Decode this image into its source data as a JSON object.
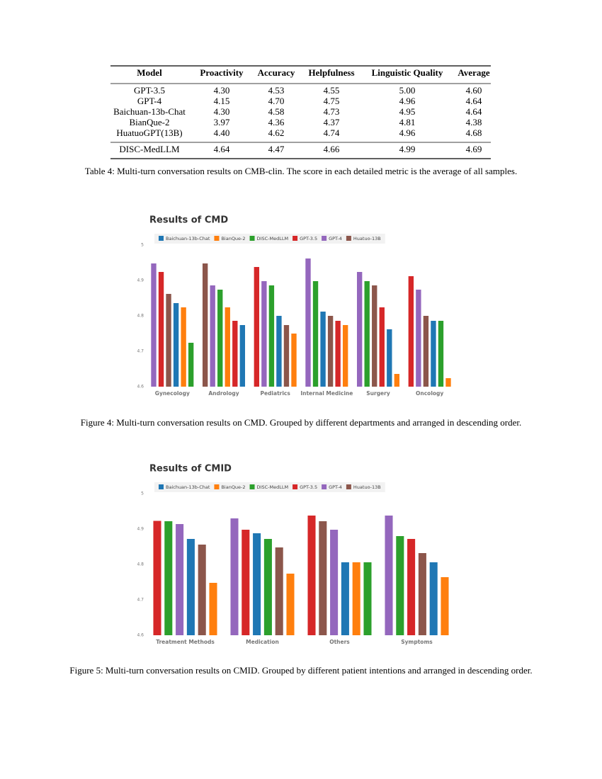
{
  "table": {
    "header": [
      "Model",
      "Proactivity",
      "Accuracy",
      "Helpfulness",
      "Linguistic Quality",
      "Average"
    ],
    "rows": [
      [
        "GPT-3.5",
        "4.30",
        "4.53",
        "4.55",
        "5.00",
        "4.60"
      ],
      [
        "GPT-4",
        "4.15",
        "4.70",
        "4.75",
        "4.96",
        "4.64"
      ],
      [
        "Baichuan-13b-Chat",
        "4.30",
        "4.58",
        "4.73",
        "4.95",
        "4.64"
      ],
      [
        "BianQue-2",
        "3.97",
        "4.36",
        "4.37",
        "4.81",
        "4.38"
      ],
      [
        "HuatuoGPT(13B)",
        "4.40",
        "4.62",
        "4.74",
        "4.96",
        "4.68"
      ]
    ],
    "final_rows": [
      [
        "DISC-MedLLM",
        "4.64",
        "4.47",
        "4.66",
        "4.99",
        "4.69"
      ]
    ]
  },
  "table_caption": "Table 4: Multi-turn conversation results on CMB-clin. The score in each detailed metric is the average of all samples.",
  "figure_captions": [
    "Figure 4: Multi-turn conversation results on CMD. Grouped by different departments and arranged in descending order.",
    "Figure 5: Multi-turn conversation results on CMID. Grouped by different patient intentions and arranged in descending order."
  ],
  "chart_data": [
    {
      "type": "bar",
      "title": "Results of CMD",
      "categories": [
        "Gynecology",
        "Andrology",
        "Pediatrics",
        "Internal Medicine",
        "Surgery",
        "Oncology"
      ],
      "series": [
        {
          "name": "Baichuan-13b-Chat",
          "color": "#1f77b4",
          "values": [
            4.836,
            4.774,
            4.8,
            4.812,
            4.762,
            4.786
          ]
        },
        {
          "name": "BianQue-2",
          "color": "#ff7f0e",
          "values": [
            4.824,
            4.824,
            4.75,
            4.774,
            4.636,
            4.624
          ]
        },
        {
          "name": "DISC-MedLLM",
          "color": "#2ca02c",
          "values": [
            4.724,
            4.874,
            4.886,
            4.898,
            4.898,
            4.786
          ]
        },
        {
          "name": "GPT-3.5",
          "color": "#d62728",
          "values": [
            4.924,
            4.786,
            4.938,
            4.786,
            4.824,
            4.912
          ]
        },
        {
          "name": "GPT-4",
          "color": "#9467bd",
          "values": [
            4.948,
            4.886,
            4.898,
            4.962,
            4.924,
            4.874
          ]
        },
        {
          "name": "Huatuo-13B",
          "color": "#8c564b",
          "values": [
            4.862,
            4.948,
            4.774,
            4.8,
            4.886,
            4.8
          ]
        }
      ],
      "ylim": [
        4.6,
        5
      ],
      "yticks": [
        4.6,
        4.7,
        4.8,
        4.9,
        5
      ]
    },
    {
      "type": "bar",
      "title": "Results of CMID",
      "categories": [
        "Treatment Methods",
        "Medication",
        "Others",
        "Symptoms"
      ],
      "series": [
        {
          "name": "Baichuan-13b-Chat",
          "color": "#1f77b4",
          "values": [
            4.872,
            4.888,
            4.806,
            4.806
          ]
        },
        {
          "name": "BianQue-2",
          "color": "#ff7f0e",
          "values": [
            4.748,
            4.774,
            4.806,
            4.764
          ]
        },
        {
          "name": "DISC-MedLLM",
          "color": "#2ca02c",
          "values": [
            4.922,
            4.872,
            4.806,
            4.88
          ]
        },
        {
          "name": "GPT-3.5",
          "color": "#d62728",
          "values": [
            4.923,
            4.898,
            4.938,
            4.872
          ]
        },
        {
          "name": "GPT-4",
          "color": "#9467bd",
          "values": [
            4.914,
            4.93,
            4.898,
            4.938
          ]
        },
        {
          "name": "Huatuo-13B",
          "color": "#8c564b",
          "values": [
            4.856,
            4.848,
            4.922,
            4.832
          ]
        }
      ],
      "ylim": [
        4.6,
        5
      ],
      "yticks": [
        4.6,
        4.7,
        4.8,
        4.9,
        5
      ]
    }
  ]
}
